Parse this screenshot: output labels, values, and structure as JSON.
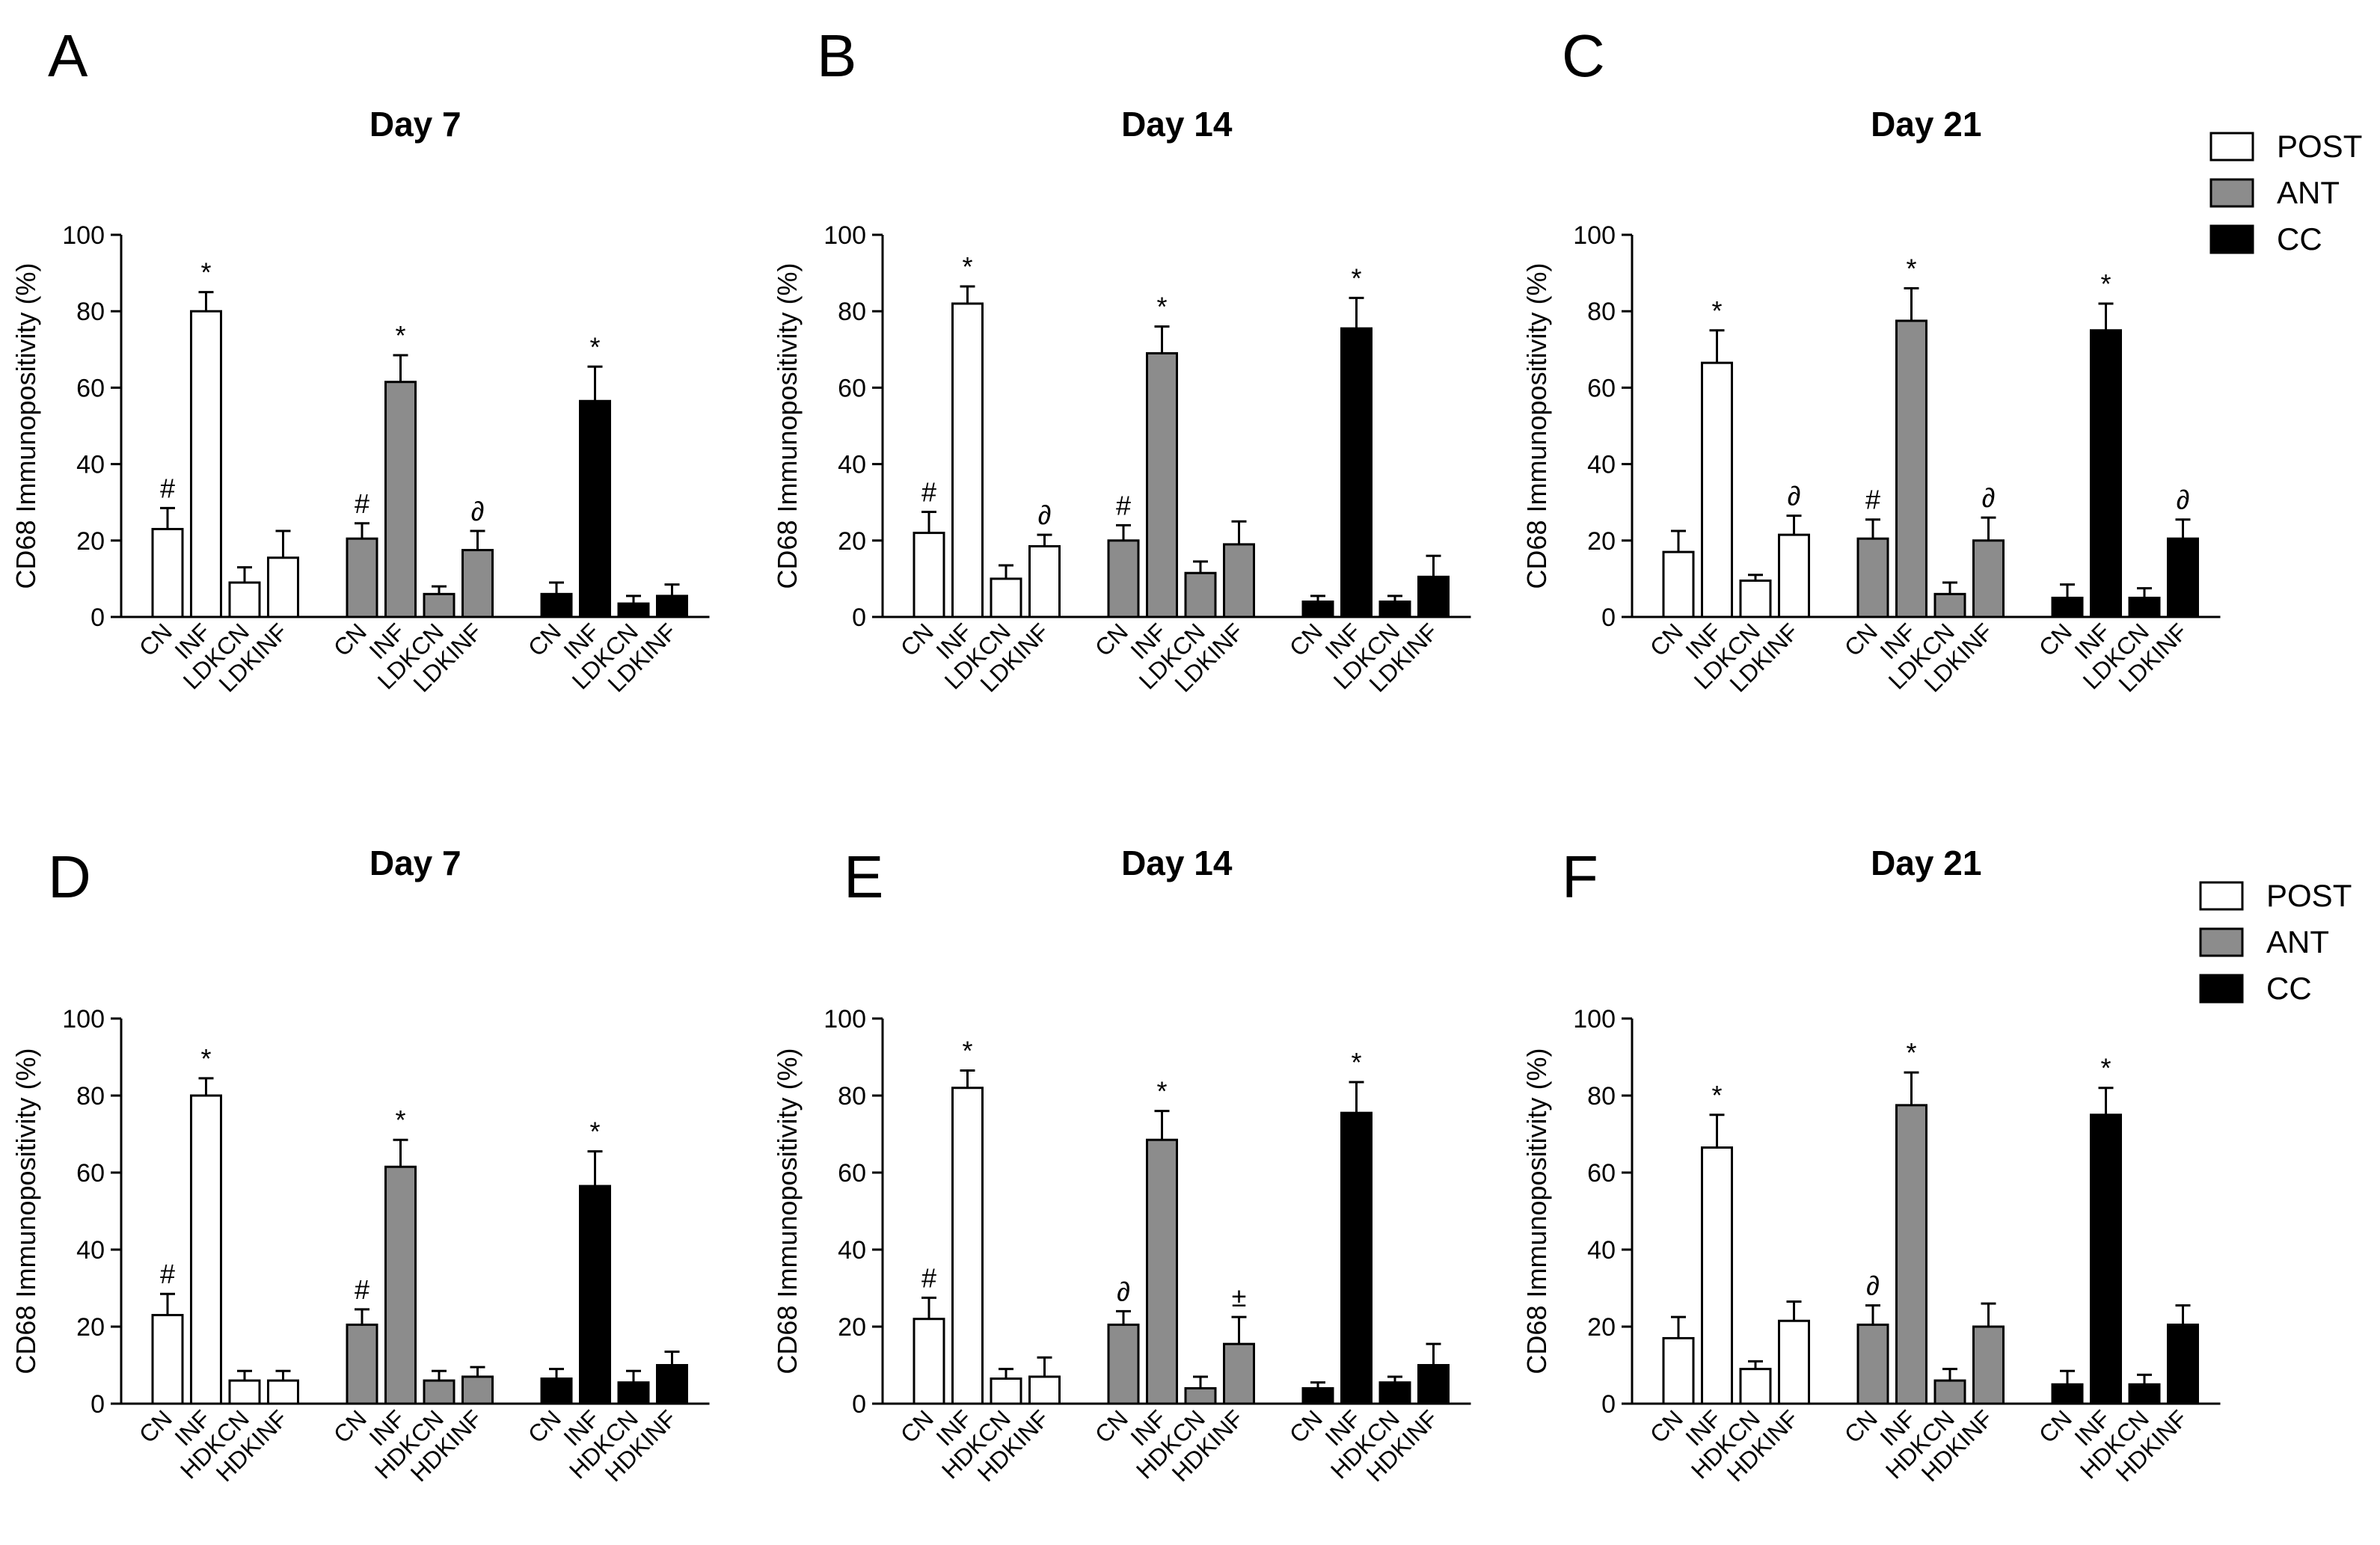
{
  "legend": {
    "entries": [
      {
        "name": "POST",
        "color": "#ffffff"
      },
      {
        "name": "ANT",
        "color": "#8c8c8c"
      },
      {
        "name": "CC",
        "color": "#000000"
      }
    ]
  },
  "chart_data": [
    {
      "panel": "A",
      "type": "bar",
      "title": "Day 7",
      "ylabel": "CD68 Immunopositivity (%)",
      "ylim": [
        0,
        100
      ],
      "yticks": [
        0,
        20,
        40,
        60,
        80,
        100
      ],
      "categories": [
        "CN",
        "INF",
        "LDKCN",
        "LDKINF"
      ],
      "series": [
        {
          "name": "POST",
          "values": [
            23,
            80,
            9,
            15.5
          ],
          "errors": [
            5.5,
            5,
            4,
            7
          ],
          "annotations": [
            "#",
            "*",
            "",
            ""
          ]
        },
        {
          "name": "ANT",
          "values": [
            20.5,
            61.5,
            6,
            17.5
          ],
          "errors": [
            4,
            7,
            2,
            5
          ],
          "annotations": [
            "#",
            "*",
            "",
            "∂"
          ]
        },
        {
          "name": "CC",
          "values": [
            6,
            56.5,
            3.5,
            5.5
          ],
          "errors": [
            3,
            9,
            2,
            3
          ],
          "annotations": [
            "",
            "*",
            "",
            ""
          ]
        }
      ]
    },
    {
      "panel": "B",
      "type": "bar",
      "title": "Day 14",
      "ylabel": "CD68 Immunopositivity (%)",
      "ylim": [
        0,
        100
      ],
      "yticks": [
        0,
        20,
        40,
        60,
        80,
        100
      ],
      "categories": [
        "CN",
        "INF",
        "LDKCN",
        "LDKINF"
      ],
      "series": [
        {
          "name": "POST",
          "values": [
            22,
            82,
            10,
            18.5
          ],
          "errors": [
            5.5,
            4.5,
            3.5,
            3
          ],
          "annotations": [
            "#",
            "*",
            "",
            "∂"
          ]
        },
        {
          "name": "ANT",
          "values": [
            20,
            69,
            11.5,
            19
          ],
          "errors": [
            4,
            7,
            3,
            6
          ],
          "annotations": [
            "#",
            "*",
            "",
            ""
          ]
        },
        {
          "name": "CC",
          "values": [
            4,
            75.5,
            4,
            10.5
          ],
          "errors": [
            1.5,
            8,
            1.5,
            5.5
          ],
          "annotations": [
            "",
            "*",
            "",
            ""
          ]
        }
      ]
    },
    {
      "panel": "C",
      "type": "bar",
      "title": "Day 21",
      "ylabel": "CD68 Immunopositivity (%)",
      "ylim": [
        0,
        100
      ],
      "yticks": [
        0,
        20,
        40,
        60,
        80,
        100
      ],
      "categories": [
        "CN",
        "INF",
        "LDKCN",
        "LDKINF"
      ],
      "series": [
        {
          "name": "POST",
          "values": [
            17,
            66.5,
            9.5,
            21.5
          ],
          "errors": [
            5.5,
            8.5,
            1.5,
            5
          ],
          "annotations": [
            "",
            "*",
            "",
            "∂"
          ]
        },
        {
          "name": "ANT",
          "values": [
            20.5,
            77.5,
            6,
            20
          ],
          "errors": [
            5,
            8.5,
            3,
            6
          ],
          "annotations": [
            "#",
            "*",
            "",
            "∂"
          ]
        },
        {
          "name": "CC",
          "values": [
            5,
            75,
            5,
            20.5
          ],
          "errors": [
            3.5,
            7,
            2.5,
            5
          ],
          "annotations": [
            "",
            "*",
            "",
            "∂"
          ]
        }
      ]
    },
    {
      "panel": "D",
      "type": "bar",
      "title": "Day 7",
      "ylabel": "CD68 Immunopositivity (%)",
      "ylim": [
        0,
        100
      ],
      "yticks": [
        0,
        20,
        40,
        60,
        80,
        100
      ],
      "categories": [
        "CN",
        "INF",
        "HDKCN",
        "HDKINF"
      ],
      "series": [
        {
          "name": "POST",
          "values": [
            23,
            80,
            6,
            6
          ],
          "errors": [
            5.5,
            4.5,
            2.5,
            2.5
          ],
          "annotations": [
            "#",
            "*",
            "",
            ""
          ]
        },
        {
          "name": "ANT",
          "values": [
            20.5,
            61.5,
            6,
            7
          ],
          "errors": [
            4,
            7,
            2.5,
            2.5
          ],
          "annotations": [
            "#",
            "*",
            "",
            ""
          ]
        },
        {
          "name": "CC",
          "values": [
            6.5,
            56.5,
            5.5,
            10
          ],
          "errors": [
            2.5,
            9,
            3,
            3.5
          ],
          "annotations": [
            "",
            "*",
            "",
            ""
          ]
        }
      ]
    },
    {
      "panel": "E",
      "type": "bar",
      "title": "Day 14",
      "ylabel": "CD68 Immunopositivity (%)",
      "ylim": [
        0,
        100
      ],
      "yticks": [
        0,
        20,
        40,
        60,
        80,
        100
      ],
      "categories": [
        "CN",
        "INF",
        "HDKCN",
        "HDKINF"
      ],
      "series": [
        {
          "name": "POST",
          "values": [
            22,
            82,
            6.5,
            7
          ],
          "errors": [
            5.5,
            4.5,
            2.5,
            5
          ],
          "annotations": [
            "#",
            "*",
            "",
            ""
          ]
        },
        {
          "name": "ANT",
          "values": [
            20.5,
            68.5,
            4,
            15.5
          ],
          "errors": [
            3.5,
            7.5,
            3,
            7
          ],
          "annotations": [
            "∂",
            "*",
            "",
            "±"
          ]
        },
        {
          "name": "CC",
          "values": [
            4,
            75.5,
            5.5,
            10
          ],
          "errors": [
            1.5,
            8,
            1.5,
            5.5
          ],
          "annotations": [
            "",
            "*",
            "",
            ""
          ]
        }
      ]
    },
    {
      "panel": "F",
      "type": "bar",
      "title": "Day 21",
      "ylabel": "CD68 Immunopositivity (%)",
      "ylim": [
        0,
        100
      ],
      "yticks": [
        0,
        20,
        40,
        60,
        80,
        100
      ],
      "categories": [
        "CN",
        "INF",
        "HDKCN",
        "HDKINF"
      ],
      "series": [
        {
          "name": "POST",
          "values": [
            17,
            66.5,
            9,
            21.5
          ],
          "errors": [
            5.5,
            8.5,
            2,
            5
          ],
          "annotations": [
            "",
            "*",
            "",
            ""
          ]
        },
        {
          "name": "ANT",
          "values": [
            20.5,
            77.5,
            6,
            20
          ],
          "errors": [
            5,
            8.5,
            3,
            6
          ],
          "annotations": [
            "∂",
            "*",
            "",
            ""
          ]
        },
        {
          "name": "CC",
          "values": [
            5,
            75,
            5,
            20.5
          ],
          "errors": [
            3.5,
            7,
            2.5,
            5
          ],
          "annotations": [
            "",
            "*",
            "",
            ""
          ]
        }
      ]
    }
  ]
}
